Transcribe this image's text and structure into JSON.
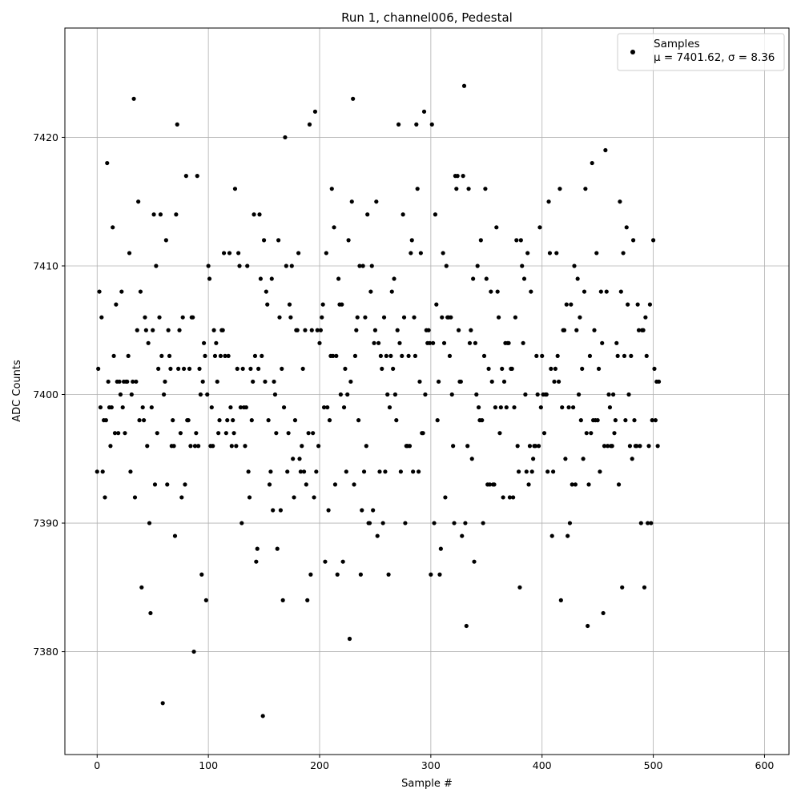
{
  "chart_data": {
    "type": "scatter",
    "title": "Run 1, channel006, Pedestal",
    "xlabel": "Sample #",
    "ylabel": "ADC Counts",
    "xlim": [
      -29,
      622
    ],
    "ylim": [
      7372,
      7428.5
    ],
    "xticks": [
      0,
      100,
      200,
      300,
      400,
      500,
      600
    ],
    "yticks": [
      7380,
      7390,
      7400,
      7410,
      7420
    ],
    "grid": true,
    "legend": {
      "placement": "top-right",
      "label": "Samples",
      "stats": "μ = 7401.62, σ = 8.36"
    },
    "series": [
      {
        "name": "Samples",
        "color": "#000000",
        "y": [
          7394,
          7402,
          7408,
          7399,
          7406,
          7394,
          7398,
          7392,
          7398,
          7418,
          7401,
          7399,
          7396,
          7399,
          7413,
          7403,
          7397,
          7407,
          7401,
          7397,
          7401,
          7400,
          7408,
          7399,
          7401,
          7397,
          7401,
          7401,
          7403,
          7411,
          7394,
          7400,
          7401,
          7423,
          7392,
          7401,
          7405,
          7415,
          7398,
          7408,
          7385,
          7399,
          7398,
          7406,
          7405,
          7396,
          7404,
          7390,
          7383,
          7399,
          7405,
          7414,
          7393,
          7410,
          7397,
          7402,
          7406,
          7414,
          7403,
          7376,
          7400,
          7401,
          7412,
          7393,
          7405,
          7403,
          7402,
          7396,
          7398,
          7396,
          7389,
          7414,
          7421,
          7402,
          7405,
          7397,
          7392,
          7406,
          7402,
          7393,
          7417,
          7398,
          7398,
          7402,
          7396,
          7406,
          7406,
          7380,
          7396,
          7397,
          7417,
          7396,
          7402,
          7400,
          7386,
          7401,
          7404,
          7403,
          7384,
          7400,
          7410,
          7409,
          7396,
          7399,
          7396,
          7405,
          7403,
          7404,
          7401,
          7397,
          7398,
          7403,
          7405,
          7405,
          7411,
          7403,
          7397,
          7398,
          7403,
          7411,
          7399,
          7396,
          7398,
          7397,
          7416,
          7396,
          7402,
          7411,
          7410,
          7399,
          7390,
          7402,
          7399,
          7396,
          7399,
          7410,
          7394,
          7392,
          7402,
          7398,
          7401,
          7414,
          7403,
          7387,
          7388,
          7402,
          7414,
          7409,
          7403,
          7375,
          7412,
          7401,
          7408,
          7407,
          7398,
          7393,
          7394,
          7409,
          7391,
          7401,
          7400,
          7397,
          7388,
          7412,
          7406,
          7391,
          7402,
          7384,
          7399,
          7420,
          7410,
          7394,
          7397,
          7407,
          7406,
          7410,
          7395,
          7392,
          7398,
          7405,
          7405,
          7411,
          7395,
          7394,
          7396,
          7402,
          7394,
          7405,
          7393,
          7384,
          7397,
          7421,
          7386,
          7405,
          7397,
          7392,
          7422,
          7394,
          7405,
          7396,
          7404,
          7405,
          7406,
          7407,
          7399,
          7387,
          7411,
          7399,
          7391,
          7398,
          7403,
          7416,
          7403,
          7413,
          7393,
          7403,
          7386,
          7409,
          7407,
          7400,
          7407,
          7387,
          7399,
          7402,
          7394,
          7400,
          7412,
          7381,
          7401,
          7415,
          7423,
          7393,
          7403,
          7405,
          7406,
          7398,
          7410,
          7386,
          7391,
          7410,
          7394,
          7406,
          7396,
          7414,
          7390,
          7390,
          7408,
          7410,
          7391,
          7404,
          7405,
          7415,
          7389,
          7404,
          7394,
          7403,
          7402,
          7390,
          7406,
          7394,
          7403,
          7400,
          7386,
          7399,
          7403,
          7408,
          7402,
          7409,
          7400,
          7398,
          7405,
          7421,
          7404,
          7394,
          7403,
          7414,
          7406,
          7390,
          7396,
          7396,
          7403,
          7396,
          7411,
          7412,
          7394,
          7406,
          7403,
          7421,
          7416,
          7394,
          7401,
          7411,
          7397,
          7397,
          7422,
          7400,
          7405,
          7404,
          7405,
          7404,
          7386,
          7421,
          7404,
          7390,
          7414,
          7407,
          7398,
          7401,
          7386,
          7388,
          7406,
          7411,
          7404,
          7392,
          7410,
          7406,
          7406,
          7403,
          7406,
          7400,
          7396,
          7390,
          7417,
          7416,
          7417,
          7405,
          7401,
          7401,
          7389,
          7417,
          7424,
          7390,
          7382,
          7396,
          7416,
          7404,
          7405,
          7395,
          7409,
          7387,
          7404,
          7400,
          7410,
          7399,
          7398,
          7412,
          7398,
          7390,
          7403,
          7416,
          7409,
          7393,
          7402,
          7393,
          7408,
          7401,
          7393,
          7393,
          7399,
          7413,
          7408,
          7406,
          7397,
          7399,
          7402,
          7392,
          7401,
          7404,
          7399,
          7404,
          7404,
          7392,
          7402,
          7402,
          7392,
          7399,
          7406,
          7412,
          7396,
          7394,
          7385,
          7412,
          7410,
          7404,
          7409,
          7400,
          7394,
          7411,
          7393,
          7396,
          7408,
          7394,
          7395,
          7396,
          7396,
          7403,
          7400,
          7396,
          7413,
          7399,
          7403,
          7400,
          7397,
          7400,
          7400,
          7394,
          7415,
          7411,
          7402,
          7389,
          7394,
          7401,
          7402,
          7411,
          7403,
          7401,
          7416,
          7384,
          7399,
          7405,
          7405,
          7395,
          7407,
          7389,
          7399,
          7390,
          7407,
          7393,
          7399,
          7410,
          7393,
          7405,
          7409,
          7400,
          7406,
          7398,
          7402,
          7395,
          7408,
          7416,
          7397,
          7382,
          7393,
          7403,
          7397,
          7418,
          7398,
          7405,
          7398,
          7411,
          7398,
          7402,
          7394,
          7408,
          7404,
          7383,
          7396,
          7419,
          7408,
          7396,
          7400,
          7399,
          7396,
          7396,
          7400,
          7397,
          7398,
          7404,
          7403,
          7393,
          7415,
          7408,
          7385,
          7411,
          7403,
          7398,
          7413,
          7407,
          7400,
          7396,
          7403,
          7395,
          7412,
          7398,
          7396,
          7396,
          7407,
          7405,
          7396,
          7390,
          7405,
          7405,
          7385,
          7406,
          7403,
          7390,
          7396,
          7407,
          7390,
          7398,
          7412,
          7402,
          7398,
          7401,
          7396,
          7401
        ]
      }
    ]
  }
}
